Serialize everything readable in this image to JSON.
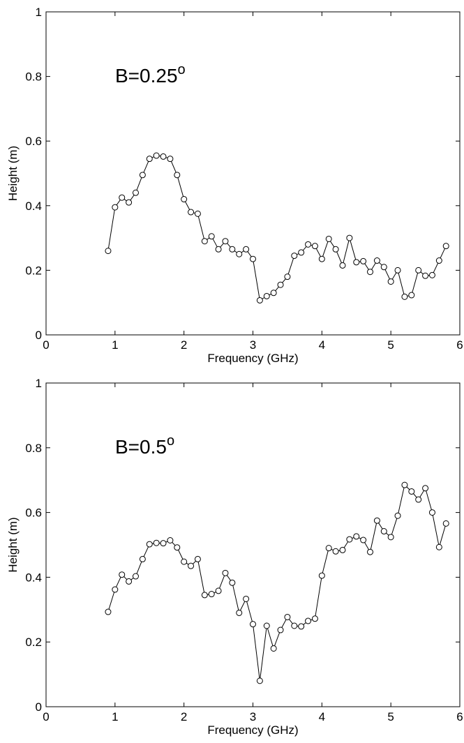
{
  "chart_data": [
    {
      "type": "line",
      "annotation": "B=0.25",
      "annotation_superscript": "o",
      "xlabel": "Frequency (GHz)",
      "ylabel": "Height (m)",
      "xlim": [
        0,
        6
      ],
      "ylim": [
        0,
        1
      ],
      "xticks": [
        "0",
        "1",
        "2",
        "3",
        "4",
        "5",
        "6"
      ],
      "yticks": [
        "0",
        "0.2",
        "0.4",
        "0.6",
        "0.8",
        "1"
      ],
      "grid": false,
      "marker": "circle",
      "x": [
        0.9,
        1.0,
        1.1,
        1.2,
        1.3,
        1.4,
        1.5,
        1.6,
        1.7,
        1.8,
        1.9,
        2.0,
        2.1,
        2.2,
        2.3,
        2.4,
        2.5,
        2.6,
        2.7,
        2.8,
        2.9,
        3.0,
        3.1,
        3.2,
        3.3,
        3.4,
        3.5,
        3.6,
        3.7,
        3.8,
        3.9,
        4.0,
        4.1,
        4.2,
        4.3,
        4.4,
        4.5,
        4.6,
        4.7,
        4.8,
        4.9,
        5.0,
        5.1,
        5.2,
        5.3,
        5.4,
        5.5,
        5.6,
        5.7,
        5.8
      ],
      "values": [
        0.26,
        0.395,
        0.425,
        0.41,
        0.44,
        0.495,
        0.545,
        0.555,
        0.552,
        0.545,
        0.495,
        0.42,
        0.38,
        0.375,
        0.29,
        0.305,
        0.265,
        0.29,
        0.265,
        0.25,
        0.265,
        0.235,
        0.107,
        0.12,
        0.13,
        0.155,
        0.18,
        0.245,
        0.255,
        0.28,
        0.275,
        0.235,
        0.297,
        0.265,
        0.215,
        0.3,
        0.225,
        0.228,
        0.195,
        0.23,
        0.21,
        0.165,
        0.2,
        0.118,
        0.123,
        0.2,
        0.183,
        0.185,
        0.23,
        0.275
      ]
    },
    {
      "type": "line",
      "annotation": "B=0.5",
      "annotation_superscript": "o",
      "xlabel": "Frequency (GHz)",
      "ylabel": "Height (m)",
      "xlim": [
        0,
        6
      ],
      "ylim": [
        0,
        1
      ],
      "xticks": [
        "0",
        "1",
        "2",
        "3",
        "4",
        "5",
        "6"
      ],
      "yticks": [
        "0",
        "0.2",
        "0.4",
        "0.6",
        "0.8",
        "1"
      ],
      "grid": false,
      "marker": "circle",
      "x": [
        0.9,
        1.0,
        1.1,
        1.2,
        1.3,
        1.4,
        1.5,
        1.6,
        1.7,
        1.8,
        1.9,
        2.0,
        2.1,
        2.2,
        2.3,
        2.4,
        2.5,
        2.6,
        2.7,
        2.8,
        2.9,
        3.0,
        3.1,
        3.2,
        3.3,
        3.4,
        3.5,
        3.6,
        3.7,
        3.8,
        3.9,
        4.0,
        4.1,
        4.2,
        4.3,
        4.4,
        4.5,
        4.6,
        4.7,
        4.8,
        4.9,
        5.0,
        5.1,
        5.2,
        5.3,
        5.4,
        5.5,
        5.6,
        5.7,
        5.8
      ],
      "values": [
        0.293,
        0.362,
        0.408,
        0.387,
        0.403,
        0.456,
        0.502,
        0.506,
        0.505,
        0.514,
        0.492,
        0.448,
        0.435,
        0.456,
        0.345,
        0.348,
        0.358,
        0.413,
        0.383,
        0.29,
        0.333,
        0.255,
        0.08,
        0.25,
        0.18,
        0.237,
        0.277,
        0.25,
        0.248,
        0.265,
        0.272,
        0.405,
        0.49,
        0.48,
        0.484,
        0.517,
        0.526,
        0.515,
        0.478,
        0.575,
        0.542,
        0.524,
        0.59,
        0.685,
        0.665,
        0.64,
        0.675,
        0.6,
        0.493,
        0.566
      ]
    }
  ]
}
